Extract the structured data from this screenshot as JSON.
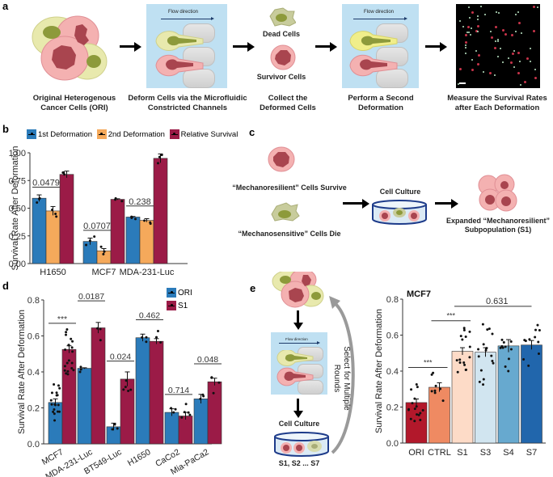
{
  "panels": {
    "a": {
      "label": "a",
      "flow_label": "Flow direction",
      "dead_cells": "Dead Cells",
      "survivor_cells": "Survivor Cells",
      "steps": [
        {
          "line1": "Original Heterogenous",
          "line2": "Cancer Cells (ORI)"
        },
        {
          "line1": "Deform Cells via the Microfluidic",
          "line2": "Constricted Channels"
        },
        {
          "line1": "Collect the",
          "line2": "Deformed Cells"
        },
        {
          "line1": "Perform a Second",
          "line2": "Deformation"
        },
        {
          "line1": "Measure the Survival Rates",
          "line2": "after Each Deformation"
        }
      ]
    },
    "b": {
      "label": "b"
    },
    "c": {
      "label": "c",
      "survive": "“Mechanoresilient” Cells Survive",
      "die": "“Mechanosensitive” Cells Die",
      "culture": "Cell Culture",
      "expanded_line1": "Expanded “Mechanoresilient”",
      "expanded_line2": "Subpopulation (S1)"
    },
    "d": {
      "label": "d"
    },
    "e": {
      "label": "e",
      "flow_label": "Flow direction",
      "culture": "Cell Culture",
      "subpops": "S1, S2 ... S7",
      "loop_line1": "Select for Multiple",
      "loop_line2": "Rounds"
    }
  },
  "colors": {
    "blue": "#2b7bba",
    "orange": "#f5a95b",
    "crimson": "#9b1b47",
    "ori_red": "#b2182b",
    "ctrl_orange": "#ef8a62",
    "s1_peach": "#fddbc7",
    "s3_lightblue": "#d1e5f0",
    "s4_blue": "#67a9cf",
    "s7_blue": "#2166ac",
    "channel_bg": "#bfe0f2",
    "cell_pink": "#f4a6a6",
    "cell_nucleus": "#a9454f",
    "cell_yellow": "#e6e8a8",
    "cell_olive": "#8d9a3b"
  },
  "chart_data": [
    {
      "id": "b",
      "type": "bar",
      "title": "",
      "xlabel": "",
      "ylabel": "Survival Rate After Deformation",
      "ylim": [
        0,
        1.0
      ],
      "yticks": [
        "0.00",
        "0.25",
        "0.50",
        "0.75",
        "1.00"
      ],
      "yticks_values": [
        0,
        0.25,
        0.5,
        0.75,
        1.0
      ],
      "categories": [
        "H1650",
        "MCF7",
        "MDA-231-Luc"
      ],
      "legend_position": "top",
      "series": [
        {
          "name": "1st Deformation",
          "values": [
            0.59,
            0.2,
            0.42
          ],
          "errors": [
            0.03,
            0.03,
            0.005
          ]
        },
        {
          "name": "2nd Deformation",
          "values": [
            0.475,
            0.115,
            0.39
          ],
          "errors": [
            0.04,
            0.02,
            0.015
          ]
        },
        {
          "name": "Relative Survival",
          "values": [
            0.805,
            0.58,
            0.95
          ],
          "errors": [
            0.03,
            0.005,
            0.04
          ]
        }
      ],
      "annotations": [
        {
          "text": "0.0479",
          "category": "H1650"
        },
        {
          "text": "0.0707",
          "category": "MCF7"
        },
        {
          "text": "0.238",
          "category": "MDA-231-Luc"
        }
      ]
    },
    {
      "id": "d",
      "type": "bar",
      "title": "",
      "xlabel": "",
      "ylabel": "Survival Rate After Deformation",
      "ylim": [
        0,
        0.8
      ],
      "yticks": [
        "0.0",
        "0.2",
        "0.4",
        "0.6",
        "0.8"
      ],
      "yticks_values": [
        0,
        0.2,
        0.4,
        0.6,
        0.8
      ],
      "categories": [
        "MCF7",
        "MDA-231-Luc",
        "BT549-Luc",
        "H1650",
        "CaCo2",
        "Mia-PaCa2"
      ],
      "legend_position": "top-right",
      "series": [
        {
          "name": "ORI",
          "values": [
            0.23,
            0.42,
            0.095,
            0.59,
            0.175,
            0.25
          ],
          "errors": [
            0.02,
            0.003,
            0.02,
            0.02,
            0.02,
            0.025
          ]
        },
        {
          "name": "S1",
          "values": [
            0.525,
            0.645,
            0.36,
            0.57,
            0.155,
            0.345
          ],
          "errors": [
            0.02,
            0.03,
            0.04,
            0.015,
            0.02,
            0.02
          ]
        }
      ],
      "annotations": [
        {
          "text": "***",
          "category": "MCF7"
        },
        {
          "text": "0.0187",
          "category": "MDA-231-Luc"
        },
        {
          "text": "0.024",
          "category": "BT549-Luc"
        },
        {
          "text": "0.462",
          "category": "H1650"
        },
        {
          "text": "0.714",
          "category": "CaCo2"
        },
        {
          "text": "0.048",
          "category": "Mia-PaCa2"
        }
      ]
    },
    {
      "id": "e",
      "type": "bar",
      "title": "MCF7",
      "xlabel": "",
      "ylabel": "Survival Rate After Deformation",
      "ylim": [
        0,
        0.8
      ],
      "yticks": [
        "0.0",
        "0.2",
        "0.4",
        "0.6",
        "0.8"
      ],
      "yticks_values": [
        0,
        0.2,
        0.4,
        0.6,
        0.8
      ],
      "categories": [
        "ORI",
        "CTRL",
        "S1",
        "S3",
        "S4",
        "S7"
      ],
      "values": [
        0.225,
        0.31,
        0.51,
        0.505,
        0.54,
        0.545
      ],
      "errors": [
        0.02,
        0.025,
        0.02,
        0.025,
        0.035,
        0.025
      ],
      "annotations": [
        {
          "text": "***",
          "between": [
            "ORI",
            "CTRL"
          ]
        },
        {
          "text": "***",
          "between": [
            "CTRL",
            "S1"
          ]
        },
        {
          "text": "0.631",
          "between": [
            "S1",
            "S7"
          ]
        }
      ]
    }
  ]
}
